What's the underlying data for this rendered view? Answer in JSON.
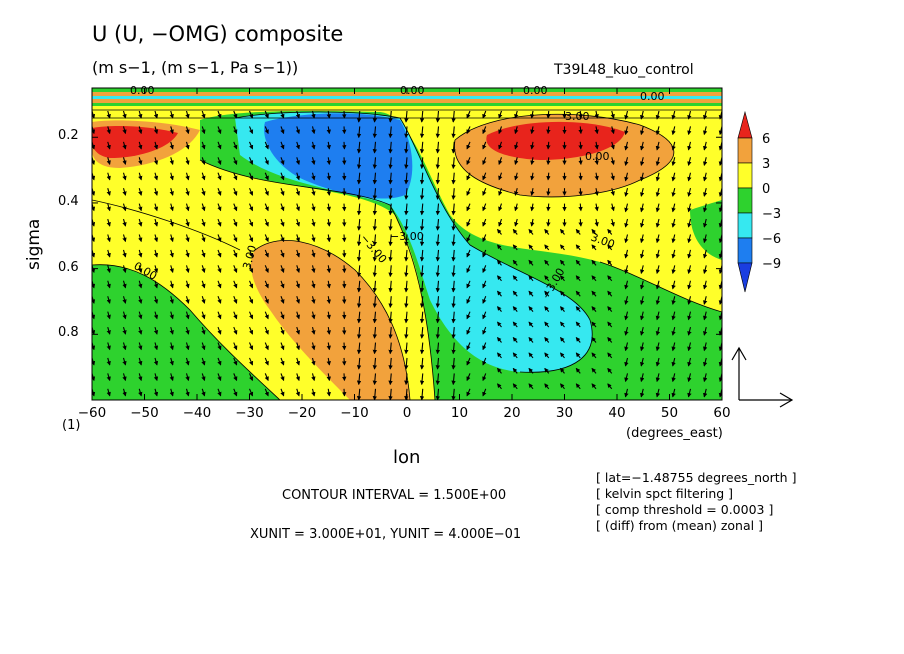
{
  "header": {
    "title": "U (U, −OMG) composite",
    "subtitle": "(m s−1, (m s−1, Pa s−1))",
    "run_name": "T39L48_kuo_control"
  },
  "axes": {
    "x_label": "lon",
    "x_units": "(degrees_east)",
    "y_label": "sigma",
    "corner_label": "(1)",
    "x_ticks": [
      "−60",
      "−50",
      "−40",
      "−30",
      "−20",
      "−10",
      "0",
      "10",
      "20",
      "30",
      "40",
      "50",
      "60"
    ],
    "y_ticks": [
      "0.2",
      "0.4",
      "0.6",
      "0.8"
    ]
  },
  "footer": {
    "contour_interval": "CONTOUR INTERVAL = 1.500E+00",
    "vector_units": "XUNIT = 3.000E+01, YUNIT = 4.000E−01"
  },
  "notes": [
    "[ lat=−1.48755 degrees_north ]",
    "[ kelvin spct filtering ]",
    "[ comp threshold = 0.0003 ]",
    "[ (diff) from (mean) zonal ]"
  ],
  "colorbar": {
    "labels": [
      "6",
      "3",
      "0",
      "−3",
      "−6",
      "−9"
    ],
    "colors": [
      "#e8241c",
      "#f2a23c",
      "#ffff2a",
      "#2ed22e",
      "#36e8f0",
      "#1e7ef0",
      "#1a3ee0"
    ]
  },
  "contour_labels": [
    "3.00",
    "−3.00",
    "0.00",
    "3.00",
    "−3.00",
    "−3.00",
    "0.00",
    "0.00",
    "0.00",
    "0.00",
    "3.00",
    "0.00"
  ],
  "chart_data": {
    "type": "heatmap",
    "description_type": "filled contour with vector overlay",
    "x_range": [
      -60,
      60
    ],
    "y_range": [
      0.05,
      1.0
    ],
    "y_inverted": true,
    "contour_interval": 1.5,
    "levels": [
      -9,
      -6,
      -3,
      0,
      3,
      6
    ],
    "features": [
      {
        "lon": -55,
        "sigma": 0.18,
        "value": 6
      },
      {
        "lon": 28,
        "sigma": 0.18,
        "value": 6
      },
      {
        "lon": -18,
        "sigma": 0.6,
        "value": 3
      },
      {
        "lon": -10,
        "sigma": 0.18,
        "value": -9
      },
      {
        "lon": 25,
        "sigma": 0.78,
        "value": -6
      },
      {
        "lon": 50,
        "sigma": 0.8,
        "value": -3
      }
    ]
  }
}
